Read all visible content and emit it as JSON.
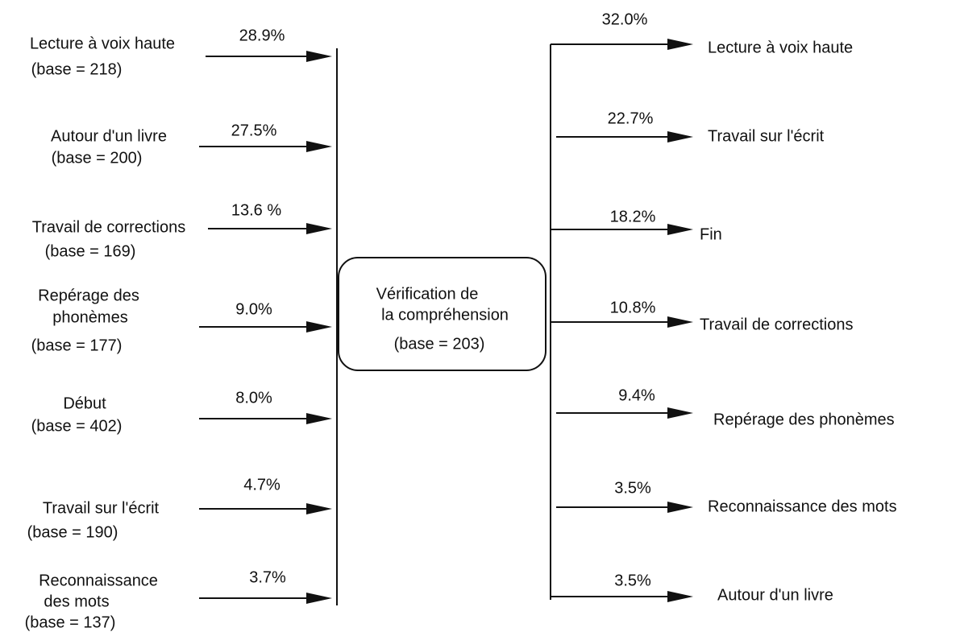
{
  "center": {
    "lines": [
      "Vérification de",
      "la compréhension",
      "(base = 203)"
    ]
  },
  "left": [
    {
      "label": [
        "Lecture à voix haute"
      ],
      "base": "(base = 218)",
      "percent": "28.9%"
    },
    {
      "label": [
        "Autour d'un livre"
      ],
      "base": "(base = 200)",
      "percent": "27.5%"
    },
    {
      "label": [
        "Travail de corrections"
      ],
      "base": "(base = 169)",
      "percent": "13.6 %"
    },
    {
      "label": [
        "Repérage des",
        "phonèmes"
      ],
      "base": "(base = 177)",
      "percent": "9.0%"
    },
    {
      "label": [
        "Début"
      ],
      "base": "(base = 402)",
      "percent": "8.0%"
    },
    {
      "label": [
        "Travail sur l'écrit"
      ],
      "base": "(base = 190)",
      "percent": "4.7%"
    },
    {
      "label": [
        "Reconnaissance",
        "des mots"
      ],
      "base": "(base = 137)",
      "percent": "3.7%"
    }
  ],
  "right": [
    {
      "percent": "32.0%",
      "label": "Lecture à voix haute"
    },
    {
      "percent": "22.7%",
      "label": "Travail sur l'écrit"
    },
    {
      "percent": "18.2%",
      "label": "Fin"
    },
    {
      "percent": "10.8%",
      "label": "Travail de corrections"
    },
    {
      "percent": "9.4%",
      "label": "Repérage des phonèmes"
    },
    {
      "percent": "3.5%",
      "label": "Reconnaissance des mots"
    },
    {
      "percent": "3.5%",
      "label": "Autour d'un livre"
    }
  ]
}
